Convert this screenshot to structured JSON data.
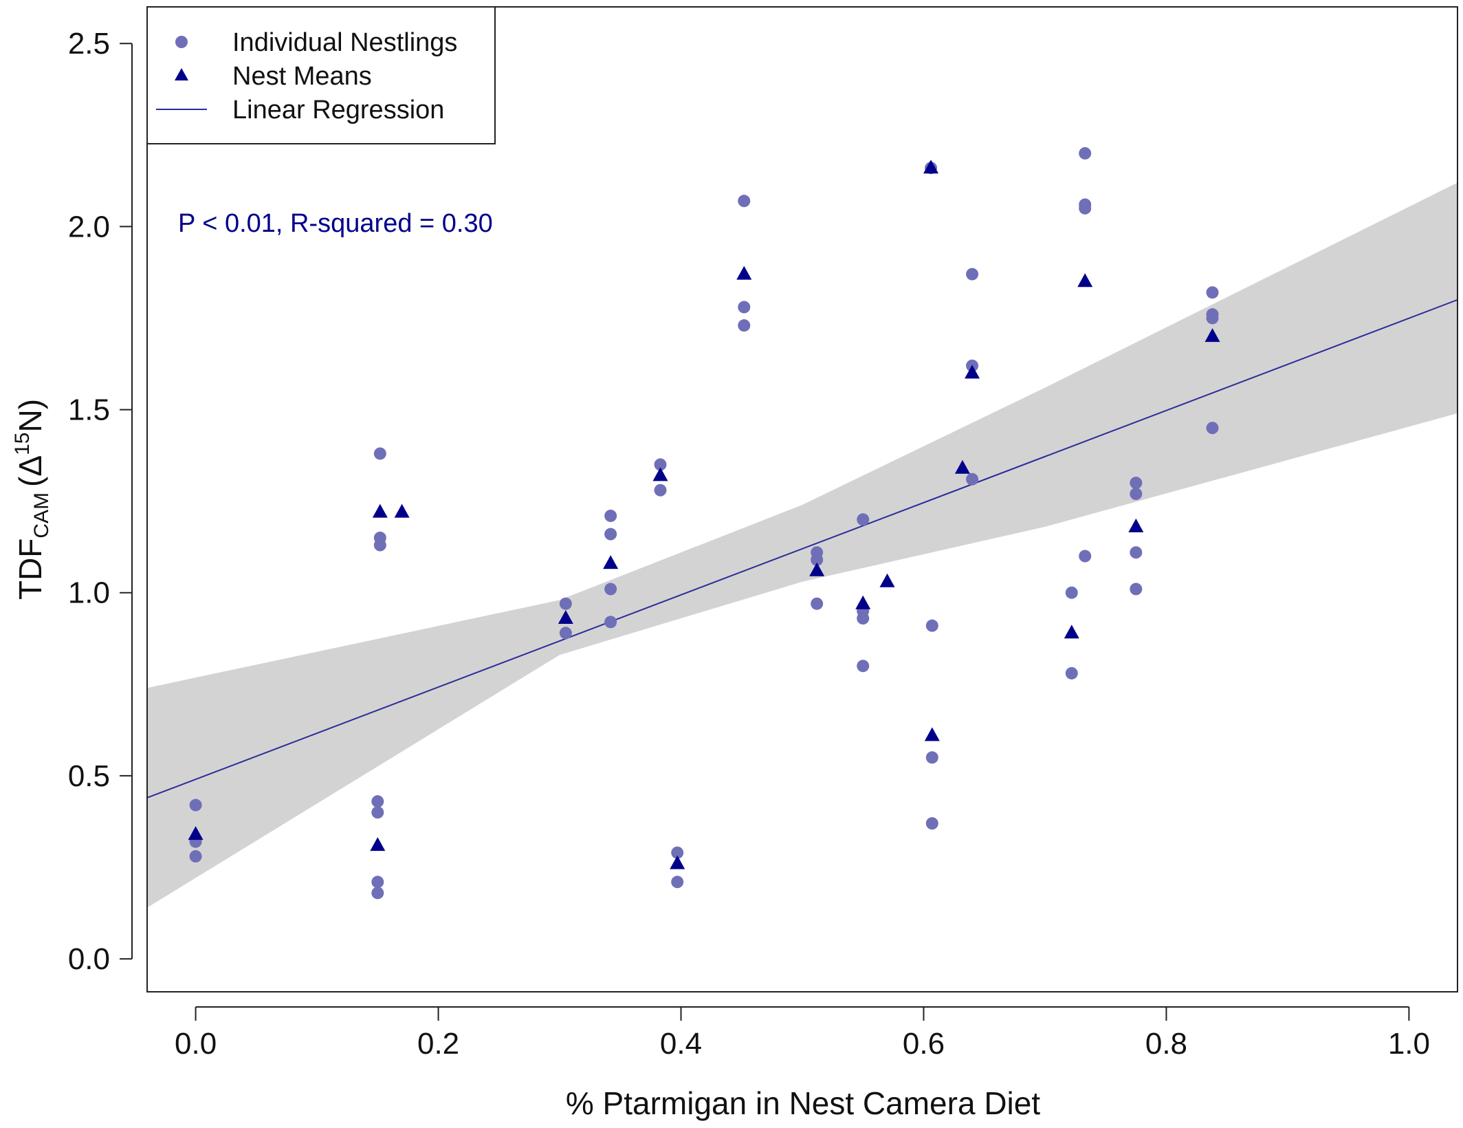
{
  "chart_data": {
    "type": "scatter",
    "xlabel": "% Ptarmigan in Nest Camera Diet",
    "ylabel_main": "TDF",
    "ylabel_sub": "CAM",
    "ylabel_delta": "(Δ",
    "ylabel_sup": "15",
    "ylabel_end": "N)",
    "xlim": [
      -0.04,
      1.04
    ],
    "ylim": [
      -0.09,
      2.6
    ],
    "xticks": [
      0.0,
      0.2,
      0.4,
      0.6,
      0.8,
      1.0
    ],
    "xtick_labels": [
      "0.0",
      "0.2",
      "0.4",
      "0.6",
      "0.8",
      "1.0"
    ],
    "yticks": [
      0.0,
      0.5,
      1.0,
      1.5,
      2.0,
      2.5
    ],
    "ytick_labels": [
      "0.0",
      "0.5",
      "1.0",
      "1.5",
      "2.0",
      "2.5"
    ],
    "annotation": "P < 0.01, R-squared = 0.30",
    "legend": {
      "position": "top-left",
      "entries": [
        "Individual Nestlings",
        "Nest Means",
        "Linear Regression"
      ]
    },
    "colors": {
      "points": "#6f6fb8",
      "means": "#00008b",
      "line": "#2b2b9a",
      "band": "#d3d3d3",
      "annotation": "#00008b"
    },
    "series": [
      {
        "name": "Individual Nestlings",
        "points": [
          [
            0.0,
            0.42
          ],
          [
            0.0,
            0.32
          ],
          [
            0.0,
            0.28
          ],
          [
            0.15,
            0.43
          ],
          [
            0.15,
            0.4
          ],
          [
            0.15,
            0.21
          ],
          [
            0.15,
            0.18
          ],
          [
            0.152,
            1.38
          ],
          [
            0.152,
            1.15
          ],
          [
            0.152,
            1.13
          ],
          [
            0.305,
            0.97
          ],
          [
            0.305,
            0.89
          ],
          [
            0.342,
            1.21
          ],
          [
            0.342,
            1.16
          ],
          [
            0.342,
            1.01
          ],
          [
            0.342,
            0.92
          ],
          [
            0.383,
            1.35
          ],
          [
            0.383,
            1.28
          ],
          [
            0.397,
            0.29
          ],
          [
            0.397,
            0.21
          ],
          [
            0.452,
            2.07
          ],
          [
            0.452,
            1.78
          ],
          [
            0.452,
            1.73
          ],
          [
            0.512,
            1.11
          ],
          [
            0.512,
            1.09
          ],
          [
            0.512,
            0.97
          ],
          [
            0.55,
            1.2
          ],
          [
            0.55,
            0.95
          ],
          [
            0.55,
            0.93
          ],
          [
            0.55,
            0.8
          ],
          [
            0.606,
            2.16
          ],
          [
            0.607,
            0.91
          ],
          [
            0.607,
            0.55
          ],
          [
            0.607,
            0.37
          ],
          [
            0.64,
            1.87
          ],
          [
            0.64,
            1.62
          ],
          [
            0.64,
            1.31
          ],
          [
            0.722,
            1.0
          ],
          [
            0.722,
            0.78
          ],
          [
            0.733,
            2.2
          ],
          [
            0.733,
            2.06
          ],
          [
            0.733,
            2.05
          ],
          [
            0.733,
            1.1
          ],
          [
            0.775,
            1.3
          ],
          [
            0.775,
            1.27
          ],
          [
            0.775,
            1.11
          ],
          [
            0.775,
            1.01
          ],
          [
            0.838,
            1.82
          ],
          [
            0.838,
            1.76
          ],
          [
            0.838,
            1.75
          ],
          [
            0.838,
            1.45
          ]
        ]
      },
      {
        "name": "Nest Means",
        "points": [
          [
            0.0,
            0.34
          ],
          [
            0.15,
            0.31
          ],
          [
            0.152,
            1.22
          ],
          [
            0.17,
            1.22
          ],
          [
            0.305,
            0.93
          ],
          [
            0.342,
            1.08
          ],
          [
            0.383,
            1.32
          ],
          [
            0.397,
            0.26
          ],
          [
            0.452,
            1.87
          ],
          [
            0.512,
            1.06
          ],
          [
            0.55,
            0.97
          ],
          [
            0.57,
            1.03
          ],
          [
            0.606,
            2.16
          ],
          [
            0.607,
            0.61
          ],
          [
            0.632,
            1.34
          ],
          [
            0.64,
            1.6
          ],
          [
            0.722,
            0.89
          ],
          [
            0.733,
            1.85
          ],
          [
            0.775,
            1.18
          ],
          [
            0.838,
            1.7
          ]
        ]
      },
      {
        "name": "Linear Regression",
        "line": [
          [
            -0.04,
            0.44
          ],
          [
            1.04,
            1.8
          ]
        ],
        "ci_upper": [
          [
            -0.04,
            0.74
          ],
          [
            0.3,
            0.98
          ],
          [
            0.5,
            1.24
          ],
          [
            0.7,
            1.56
          ],
          [
            1.04,
            2.12
          ]
        ],
        "ci_lower": [
          [
            -0.04,
            0.14
          ],
          [
            0.3,
            0.83
          ],
          [
            0.5,
            1.03
          ],
          [
            0.7,
            1.18
          ],
          [
            1.04,
            1.49
          ]
        ]
      }
    ]
  }
}
